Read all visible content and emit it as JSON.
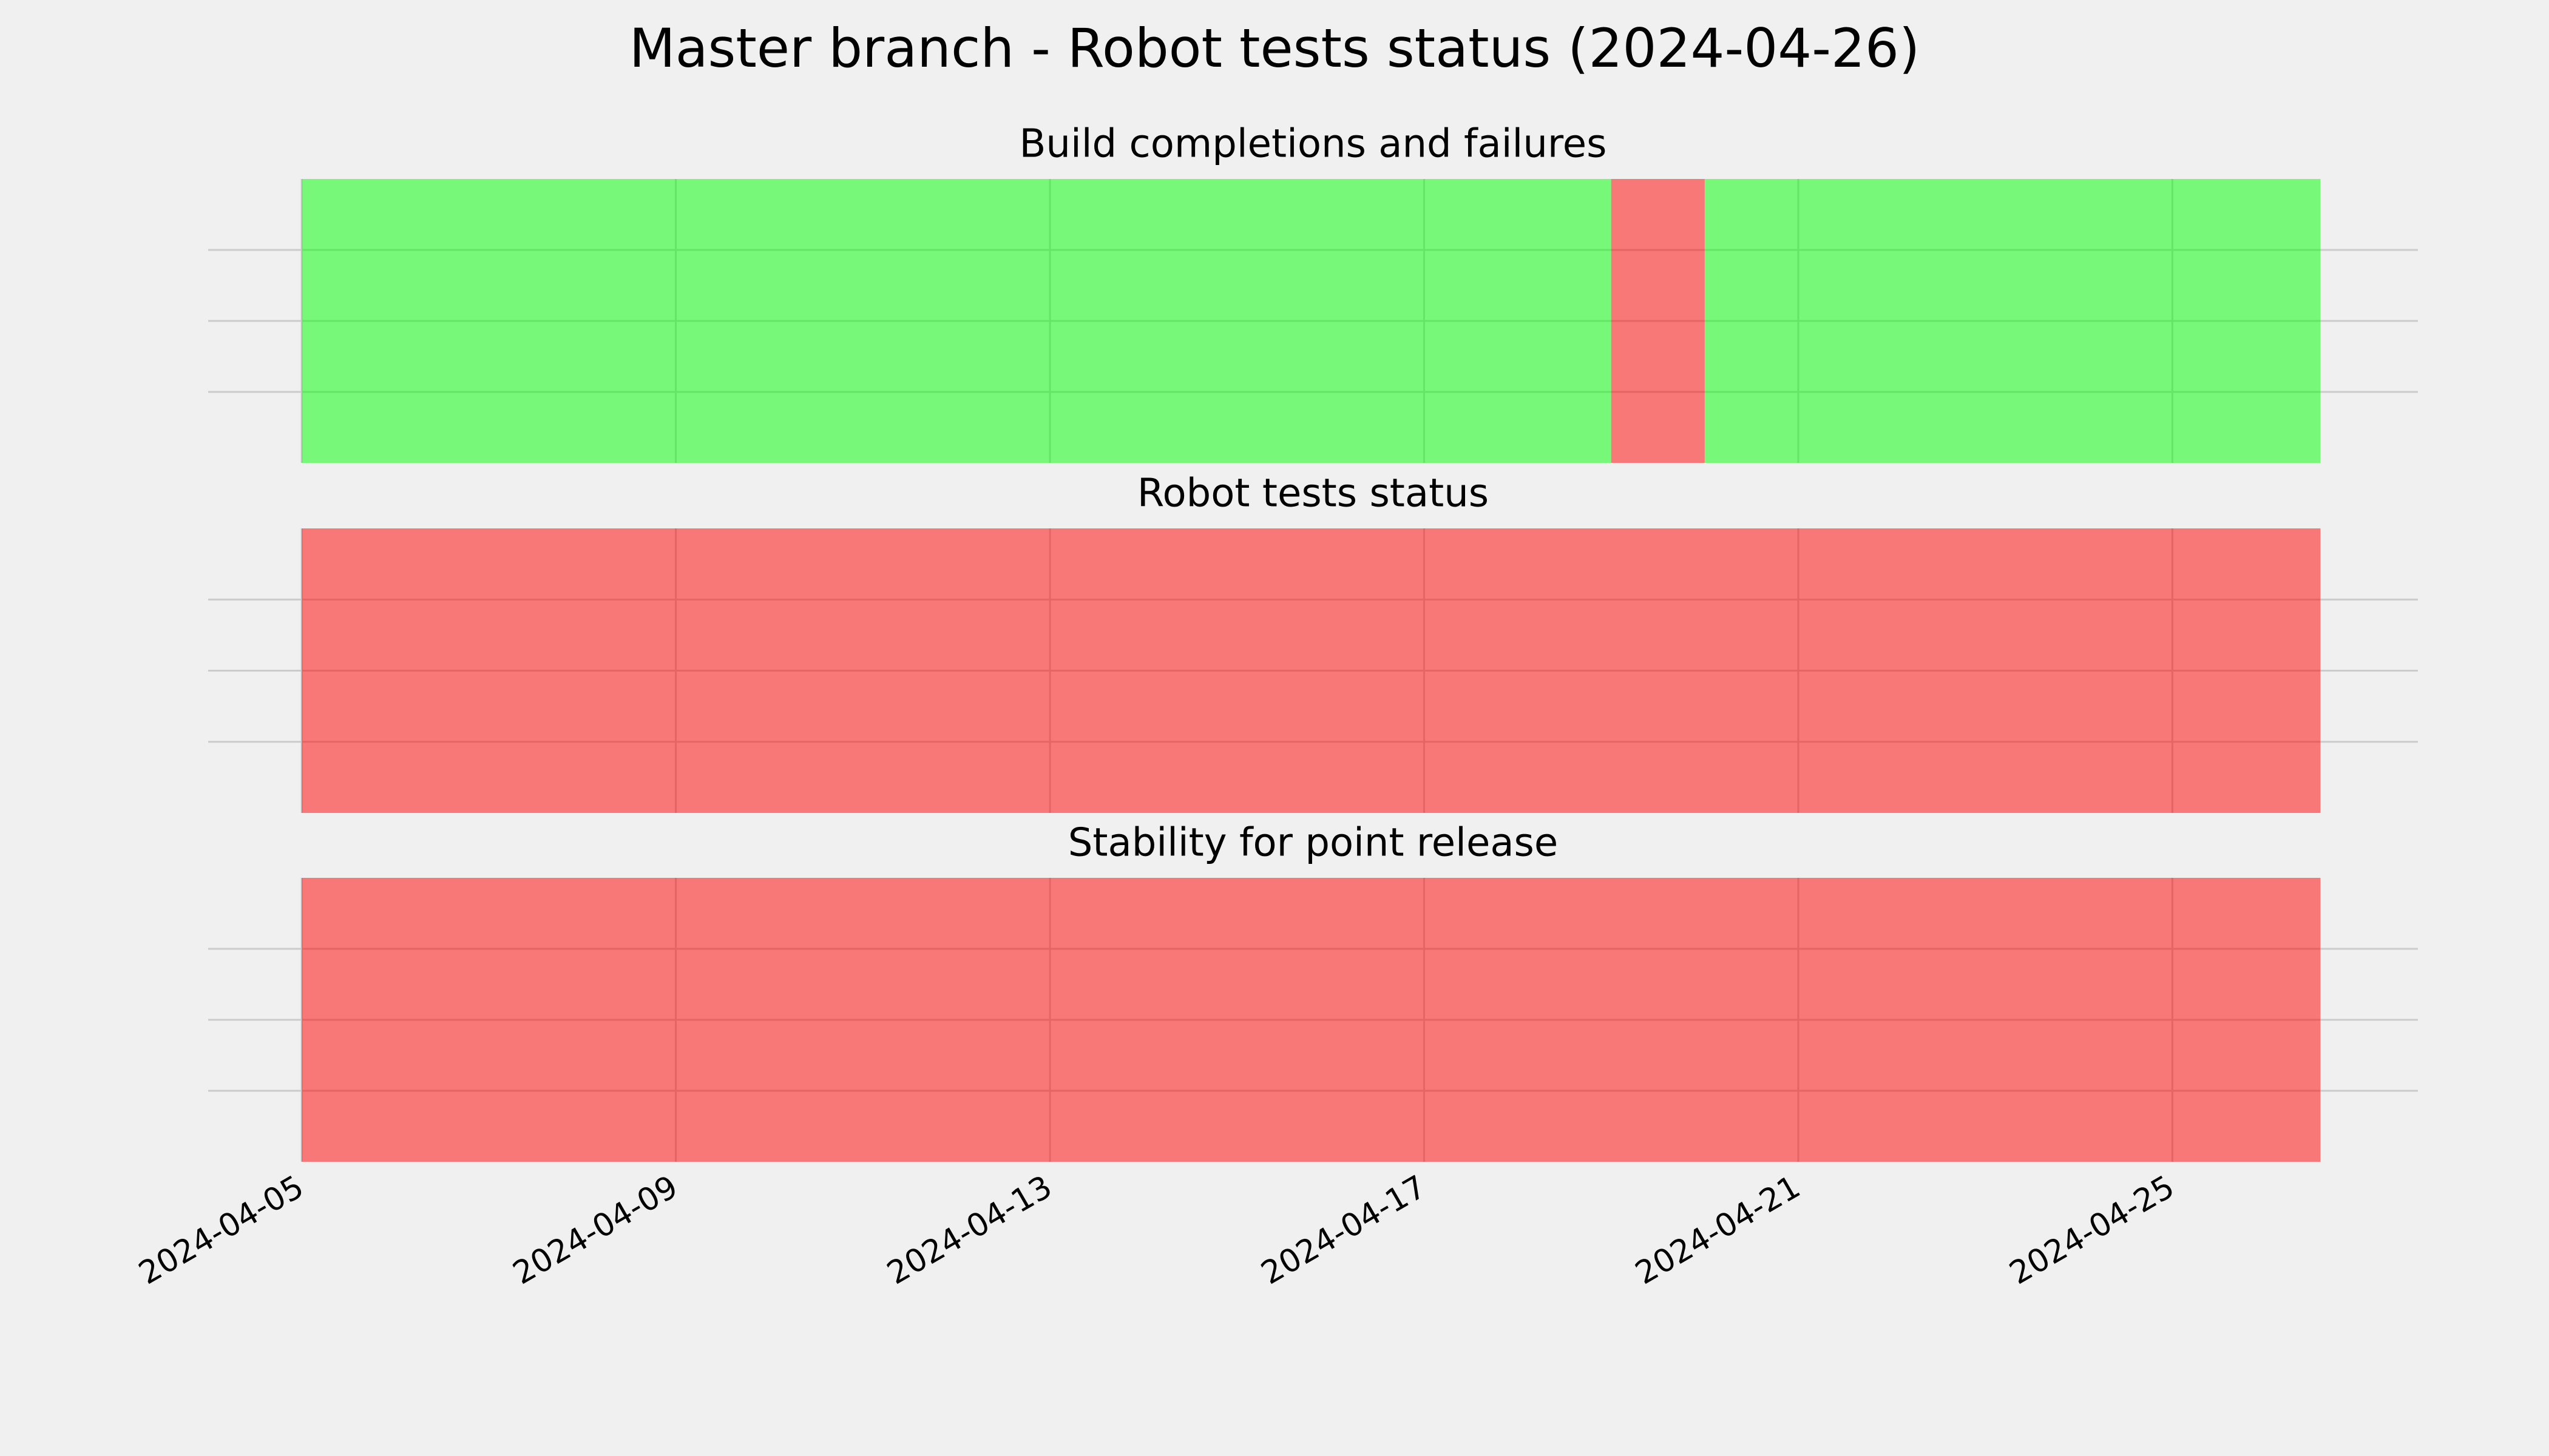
{
  "title": "Master branch - Robot tests status (2024-04-26)",
  "chart_data": [
    {
      "type": "timeline",
      "title": "Build completions and failures",
      "segments": [
        {
          "start": "2024-04-05",
          "end": "2024-04-19",
          "color": "#00ff00"
        },
        {
          "start": "2024-04-19",
          "end": "2024-04-20",
          "color": "#ff0000"
        },
        {
          "start": "2024-04-20",
          "end": "2024-04-26T14:00",
          "color": "#00ff00"
        }
      ],
      "xlim": [
        "2024-04-04",
        "2024-04-27T15:00"
      ],
      "xticks": [
        "2024-04-05",
        "2024-04-09",
        "2024-04-13",
        "2024-04-17",
        "2024-04-21",
        "2024-04-25"
      ],
      "show_xtick_labels": false,
      "ylim": [
        0,
        1
      ],
      "yticks": [
        0.25,
        0.5,
        0.75
      ],
      "show_ytick_labels": false,
      "grid": true
    },
    {
      "type": "timeline",
      "title": "Robot tests status",
      "segments": [
        {
          "start": "2024-04-05",
          "end": "2024-04-26T14:00",
          "color": "#ff0000"
        }
      ],
      "xlim": [
        "2024-04-04",
        "2024-04-27T15:00"
      ],
      "xticks": [
        "2024-04-05",
        "2024-04-09",
        "2024-04-13",
        "2024-04-17",
        "2024-04-21",
        "2024-04-25"
      ],
      "show_xtick_labels": false,
      "ylim": [
        0,
        1
      ],
      "yticks": [
        0.25,
        0.5,
        0.75
      ],
      "show_ytick_labels": false,
      "grid": true
    },
    {
      "type": "timeline",
      "title": "Stability for point release",
      "segments": [
        {
          "start": "2024-04-05",
          "end": "2024-04-26T14:00",
          "color": "#ff0000"
        }
      ],
      "xlim": [
        "2024-04-04",
        "2024-04-27T15:00"
      ],
      "xticks": [
        "2024-04-05",
        "2024-04-09",
        "2024-04-13",
        "2024-04-17",
        "2024-04-21",
        "2024-04-25"
      ],
      "show_xtick_labels": true,
      "ylim": [
        0,
        1
      ],
      "yticks": [
        0.25,
        0.5,
        0.75
      ],
      "show_ytick_labels": false,
      "grid": true
    }
  ]
}
